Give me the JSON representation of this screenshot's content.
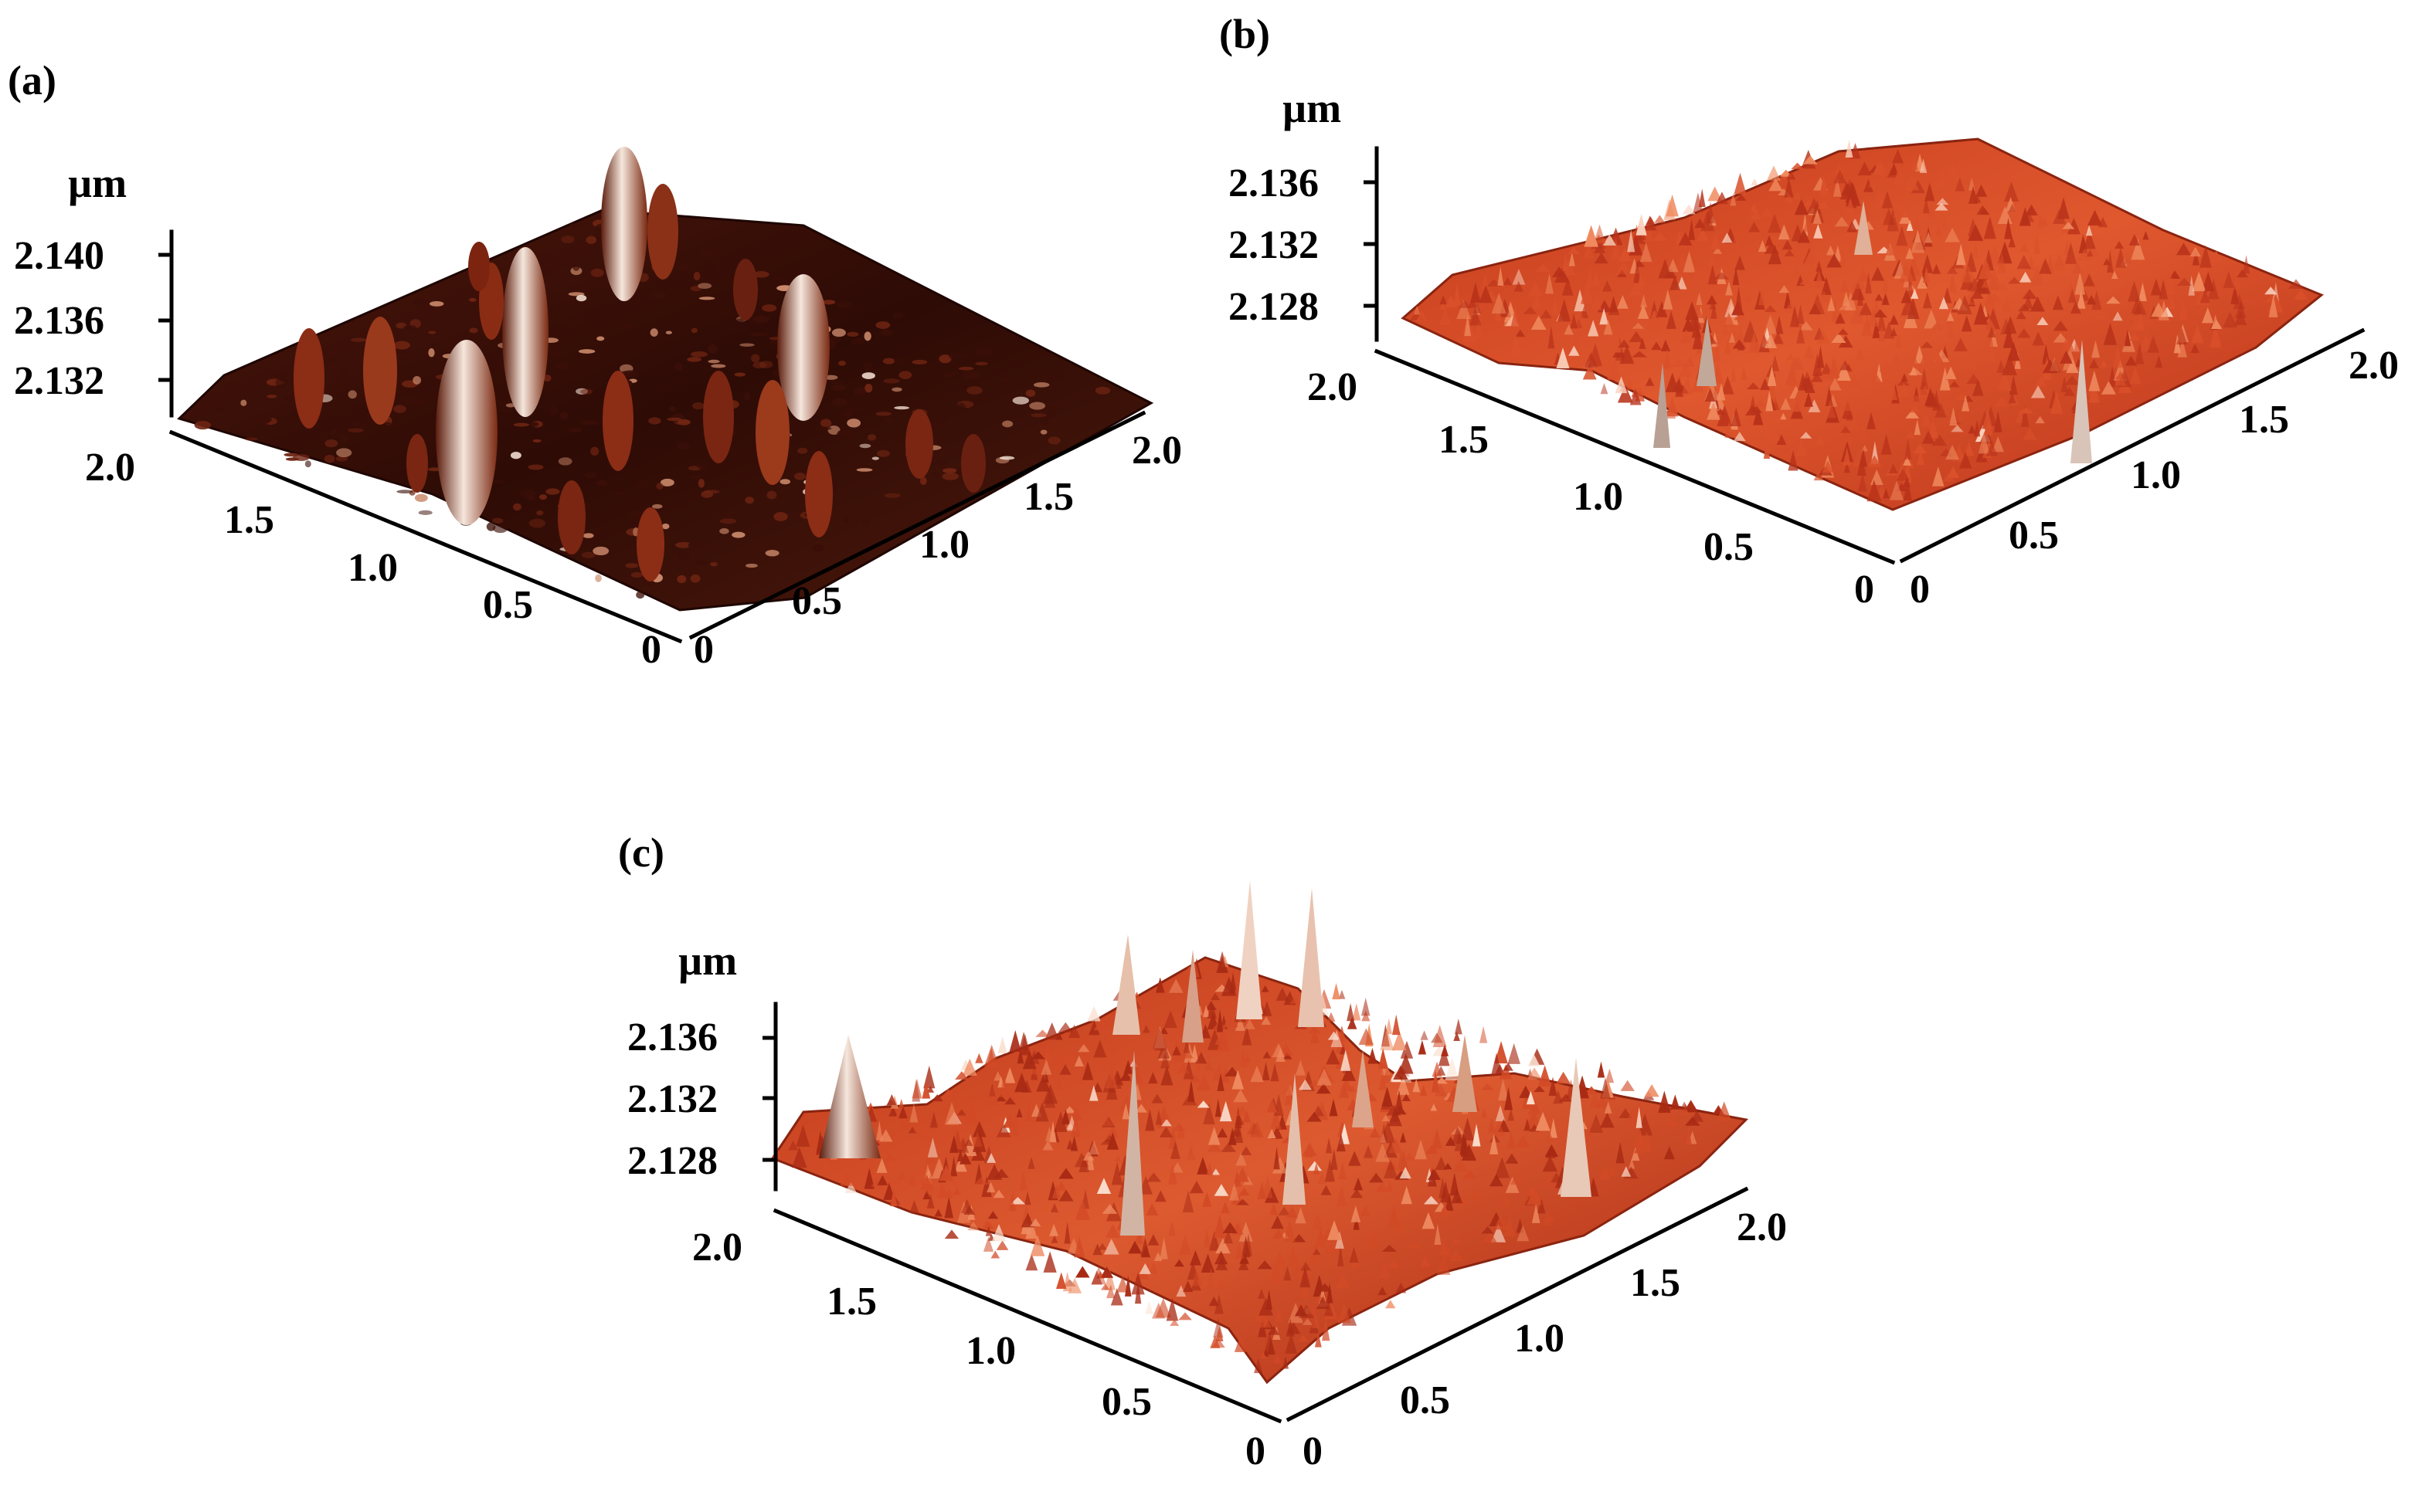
{
  "panels": [
    {
      "label": "(a)",
      "unit": "µm",
      "z_ticks": [
        "2.140",
        "2.136",
        "2.132"
      ],
      "left_axis_ticks": [
        "2.0",
        "1.5",
        "1.0",
        "0.5",
        "0"
      ],
      "right_axis_ticks": [
        "0",
        "0.5",
        "1.0",
        "1.5",
        "2.0"
      ],
      "surface_colors": {
        "base": "#3a0f08",
        "mid": "#6e2412",
        "peak": "#c9886a",
        "highlight": "#f2ddd0"
      }
    },
    {
      "label": "(b)",
      "unit": "µm",
      "z_ticks": [
        "2.136",
        "2.132",
        "2.128"
      ],
      "left_axis_ticks": [
        "2.0",
        "1.5",
        "1.0",
        "0.5",
        "0"
      ],
      "right_axis_ticks": [
        "0",
        "0.5",
        "1.0",
        "1.5",
        "2.0"
      ],
      "surface_colors": {
        "base": "#b8321a",
        "mid": "#d9502a",
        "peak": "#f08a5e",
        "highlight": "#fbd2bd"
      }
    },
    {
      "label": "(c)",
      "unit": "µm",
      "z_ticks": [
        "2.136",
        "2.132",
        "2.128"
      ],
      "left_axis_ticks": [
        "2.0",
        "1.5",
        "1.0",
        "0.5",
        "0"
      ],
      "right_axis_ticks": [
        "0",
        "0.5",
        "1.0",
        "1.5",
        "2.0"
      ],
      "surface_colors": {
        "base": "#a82a14",
        "mid": "#d24a26",
        "peak": "#ee8a60",
        "highlight": "#fbe0d0"
      }
    }
  ]
}
